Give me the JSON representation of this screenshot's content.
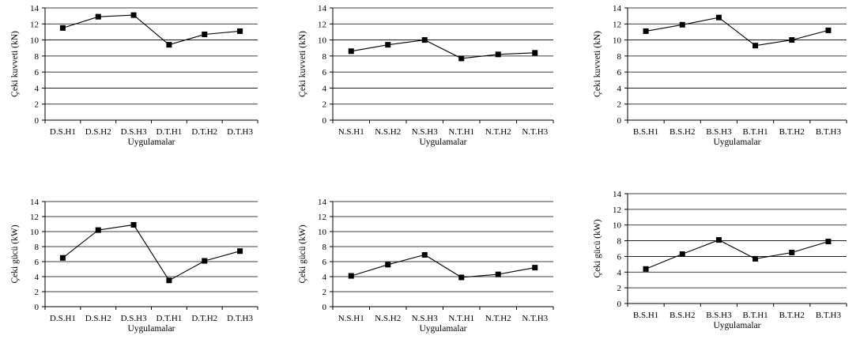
{
  "chart_data": [
    {
      "type": "line",
      "categories": [
        "D.S.H1",
        "D.S.H2",
        "D.S.H3",
        "D.T.H1",
        "D.T.H2",
        "D.T.H3"
      ],
      "values": [
        11.5,
        12.9,
        13.1,
        9.4,
        10.7,
        11.1
      ],
      "xlabel": "Uygulamalar",
      "ylabel": "Çeki kuvveti (kN)",
      "ylim": [
        0,
        14
      ],
      "yticks": [
        "0",
        "2",
        "4",
        "6",
        "8",
        "10",
        "12",
        "14"
      ],
      "grid": "horizontal",
      "marker": "square"
    },
    {
      "type": "line",
      "categories": [
        "N.S.H1",
        "N.S.H2",
        "N.S.H3",
        "N.T.H1",
        "N.T.H2",
        "N.T.H3"
      ],
      "values": [
        8.6,
        9.4,
        10.0,
        7.7,
        8.2,
        8.4
      ],
      "xlabel": "Uygulamalar",
      "ylabel": "Çeki kuvveti (kN)",
      "ylim": [
        0,
        14
      ],
      "yticks": [
        "0",
        "2",
        "4",
        "6",
        "8",
        "10",
        "12",
        "14"
      ],
      "grid": "horizontal",
      "marker": "square"
    },
    {
      "type": "line",
      "categories": [
        "B.S.H1",
        "B.S.H2",
        "B.S.H3",
        "B.T.H1",
        "B.T.H2",
        "B.T.H3"
      ],
      "values": [
        11.1,
        11.9,
        12.8,
        9.3,
        10.0,
        11.2
      ],
      "xlabel": "Uygulamalar",
      "ylabel": "Çeki kuvveti (kN)",
      "ylim": [
        0,
        14
      ],
      "yticks": [
        "0",
        "2",
        "4",
        "6",
        "8",
        "10",
        "12",
        "14"
      ],
      "grid": "horizontal",
      "marker": "square"
    },
    {
      "type": "line",
      "categories": [
        "D.S.H1",
        "D.S.H2",
        "D.S.H3",
        "D.T.H1",
        "D.T.H2",
        "D.T.H3"
      ],
      "values": [
        6.5,
        10.2,
        10.9,
        3.5,
        6.1,
        7.4
      ],
      "xlabel": "Uygulamalar",
      "ylabel": "Çeki gücü (kW)",
      "ylim": [
        0,
        14
      ],
      "yticks": [
        "0",
        "2",
        "4",
        "6",
        "8",
        "10",
        "12",
        "14"
      ],
      "grid": "horizontal",
      "marker": "square"
    },
    {
      "type": "line",
      "categories": [
        "N.S.H1",
        "N.S.H2",
        "N.S.H3",
        "N.T.H1",
        "N.T.H2",
        "N.T.H3"
      ],
      "values": [
        4.1,
        5.6,
        6.9,
        3.9,
        4.3,
        5.2
      ],
      "xlabel": "Uygulamalar",
      "ylabel": "Çeki gücü (kW)",
      "ylim": [
        0,
        14
      ],
      "yticks": [
        "0",
        "2",
        "4",
        "6",
        "8",
        "10",
        "12",
        "14"
      ],
      "grid": "horizontal",
      "marker": "square"
    },
    {
      "type": "line",
      "categories": [
        "B.S.H1",
        "B.S.H2",
        "B.S.H3",
        "B.T.H1",
        "B.T.H2",
        "B.T.H3"
      ],
      "values": [
        4.4,
        6.3,
        8.1,
        5.7,
        6.5,
        7.9
      ],
      "xlabel": "Uygulamalar",
      "ylabel": "Çeki gücü (kW)",
      "ylim": [
        0,
        14
      ],
      "yticks": [
        "0",
        "2",
        "4",
        "6",
        "8",
        "10",
        "12",
        "14"
      ],
      "grid": "horizontal",
      "marker": "square"
    }
  ]
}
